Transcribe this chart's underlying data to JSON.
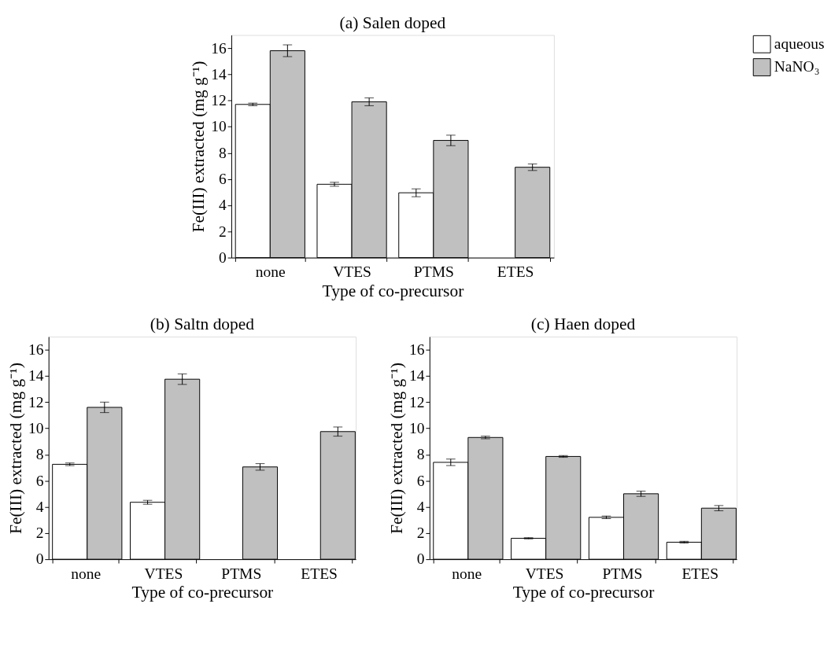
{
  "chart_data": [
    {
      "type": "bar",
      "title": "(a) Salen doped",
      "xlabel": "Type of co-precursor",
      "ylabel": "Fe(III) extracted (mg g⁻¹)",
      "categories": [
        "none",
        "VTES",
        "PTMS",
        "ETES"
      ],
      "ylim": [
        0,
        17
      ],
      "yticks": [
        0,
        2,
        4,
        6,
        8,
        10,
        12,
        14,
        16
      ],
      "grid": false,
      "legend": "right",
      "series": [
        {
          "name": "aqueous",
          "color": "#ffffff",
          "values": [
            11.7,
            5.6,
            4.95,
            null
          ],
          "errors": [
            0.1,
            0.15,
            0.3,
            null
          ]
        },
        {
          "name": "NaNO₃",
          "color": "#c0c0c0",
          "values": [
            15.8,
            11.9,
            8.95,
            6.9
          ],
          "errors": [
            0.45,
            0.3,
            0.4,
            0.25
          ]
        }
      ]
    },
    {
      "type": "bar",
      "title": "(b) Saltn doped",
      "xlabel": "Type of co-precursor",
      "ylabel": "Fe(III) extracted (mg g⁻¹)",
      "categories": [
        "none",
        "VTES",
        "PTMS",
        "ETES"
      ],
      "ylim": [
        0,
        17
      ],
      "yticks": [
        0,
        2,
        4,
        6,
        8,
        10,
        12,
        14,
        16
      ],
      "grid": false,
      "legend": false,
      "series": [
        {
          "name": "aqueous",
          "color": "#ffffff",
          "values": [
            7.25,
            4.35,
            null,
            null
          ],
          "errors": [
            0.1,
            0.15,
            null,
            null
          ]
        },
        {
          "name": "NaNO₃",
          "color": "#c0c0c0",
          "values": [
            11.6,
            13.75,
            7.05,
            9.75
          ],
          "errors": [
            0.4,
            0.4,
            0.25,
            0.35
          ]
        }
      ]
    },
    {
      "type": "bar",
      "title": "(c) Haen doped",
      "xlabel": "Type of co-precursor",
      "ylabel": "Fe(III) extracted (mg g⁻¹)",
      "categories": [
        "none",
        "VTES",
        "PTMS",
        "ETES"
      ],
      "ylim": [
        0,
        17
      ],
      "yticks": [
        0,
        2,
        4,
        6,
        8,
        10,
        12,
        14,
        16
      ],
      "grid": false,
      "legend": false,
      "series": [
        {
          "name": "aqueous",
          "color": "#ffffff",
          "values": [
            7.4,
            1.6,
            3.2,
            1.3
          ],
          "errors": [
            0.25,
            0.05,
            0.1,
            0.07
          ]
        },
        {
          "name": "NaNO₃",
          "color": "#c0c0c0",
          "values": [
            9.3,
            7.85,
            5.0,
            3.9
          ],
          "errors": [
            0.1,
            0.07,
            0.2,
            0.2
          ]
        }
      ]
    }
  ]
}
